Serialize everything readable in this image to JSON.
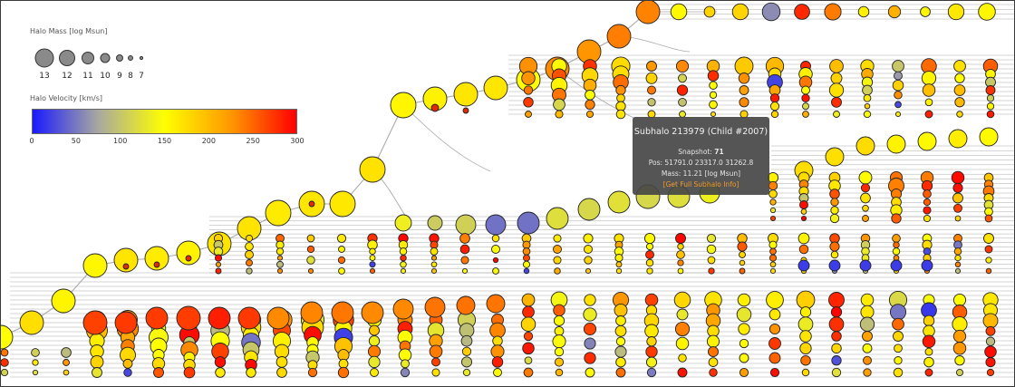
{
  "legend": {
    "mass_title": "Halo Mass [log Msun]",
    "mass_values": [
      13,
      12,
      11,
      10,
      9,
      8,
      7
    ],
    "velocity_title": "Halo Velocity [km/s]",
    "velocity_ticks": [
      0,
      50,
      100,
      150,
      200,
      250,
      300
    ],
    "velocity_range": [
      0,
      300
    ],
    "velocity_colors": [
      "#1a1aff",
      "#a9a9a0",
      "#ffff00",
      "#ff9900",
      "#ff0000"
    ]
  },
  "tooltip": {
    "title": "Subhalo 213979 (Child #2007)",
    "snapshot_label": "Snapshot:",
    "snapshot_value": "71",
    "position": "Pos: 51791.0 23317.0 31262.8",
    "mass": "Mass: 11.21 [log Msun]",
    "link": "[Get Full Subhalo Info]"
  },
  "colors": {
    "node_stroke": "#222222",
    "link": "#aaaaaa",
    "background": "#ffffff"
  }
}
